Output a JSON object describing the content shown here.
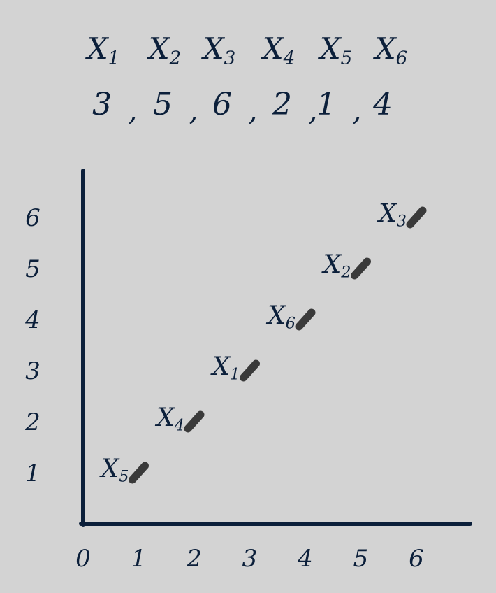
{
  "colors": {
    "background": "#d3d3d3",
    "ink": "#0b1f3a",
    "stroke": "#3a3a3a"
  },
  "header": {
    "variables": [
      "X1",
      "X2",
      "X3",
      "X4",
      "X5",
      "X6"
    ],
    "values": [
      "3",
      "5",
      "6",
      "2",
      "1",
      "4"
    ],
    "separator": ","
  },
  "chart_data": {
    "type": "scatter",
    "x_ticks": [
      "0",
      "1",
      "2",
      "3",
      "4",
      "5",
      "6"
    ],
    "y_ticks": [
      "1",
      "2",
      "3",
      "4",
      "5",
      "6"
    ],
    "xlim": [
      0,
      7
    ],
    "ylim": [
      0,
      6
    ],
    "points": [
      {
        "label": "X5",
        "x": 1,
        "y": 1
      },
      {
        "label": "X4",
        "x": 2,
        "y": 2
      },
      {
        "label": "X1",
        "x": 3,
        "y": 3
      },
      {
        "label": "X6",
        "x": 4,
        "y": 4
      },
      {
        "label": "X2",
        "x": 5,
        "y": 5
      },
      {
        "label": "X3",
        "x": 6,
        "y": 6
      }
    ]
  }
}
